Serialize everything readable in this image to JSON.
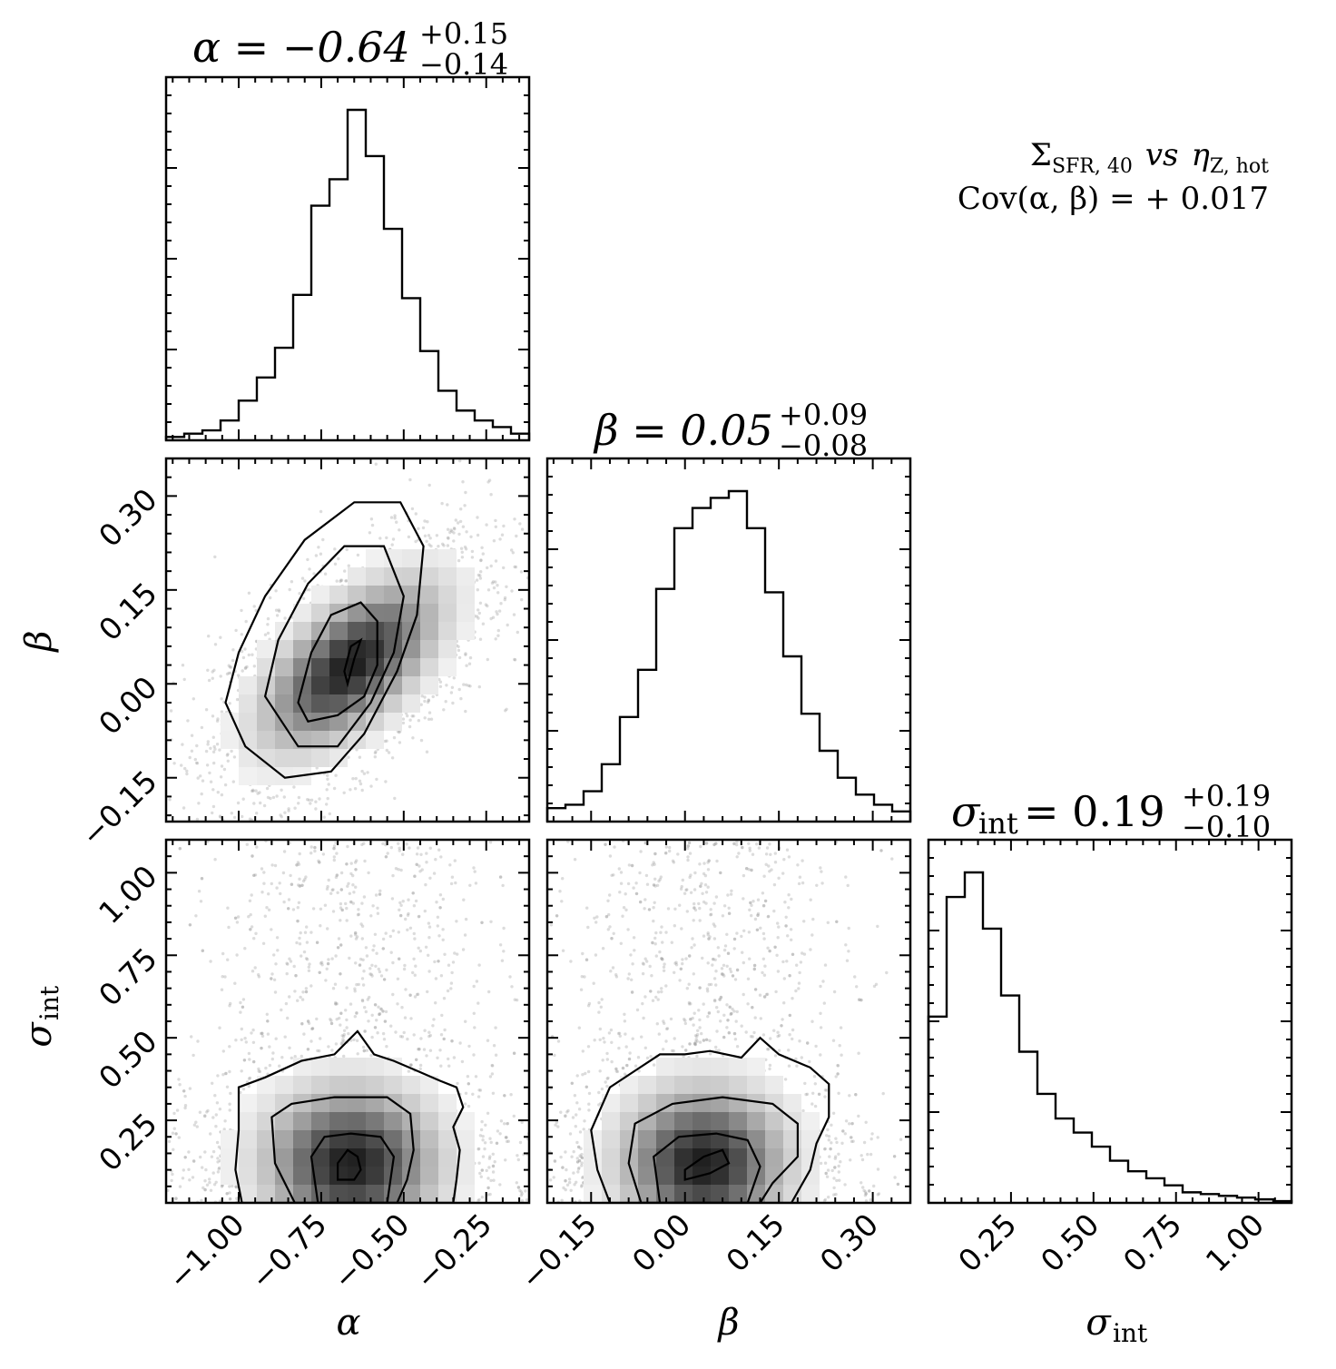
{
  "chart_data": {
    "type": "corner",
    "annotation": {
      "line1_main": "Σ",
      "line1_sub": "SFR, 40",
      "line1_vs": "vs",
      "line1_eta": "η",
      "line1_eta_sub": "Z, hot",
      "line2": "Cov(α, β) = + 0.017"
    },
    "parameters": [
      {
        "key": "alpha",
        "label": "α",
        "title": "α = −0.64",
        "title_sup": "+0.15",
        "title_sub": "−0.14",
        "median": -0.64,
        "range": [
          -1.22,
          -0.12
        ],
        "ticks": [
          -1.0,
          -0.75,
          -0.5,
          -0.25
        ],
        "tick_labels": [
          "−1.00",
          "−0.75",
          "−0.50",
          "−0.25"
        ]
      },
      {
        "key": "beta",
        "label": "β",
        "title": "β = 0.05",
        "title_sup": "+0.09",
        "title_sub": "−0.08",
        "median": 0.05,
        "range": [
          -0.22,
          0.36
        ],
        "ticks": [
          -0.15,
          0.0,
          0.15,
          0.3
        ],
        "tick_labels": [
          "−0.15",
          "0.00",
          "0.15",
          "0.30"
        ]
      },
      {
        "key": "sigma",
        "label": "σ",
        "label_sub": "int",
        "title": "σ",
        "title_after": " = 0.19",
        "title_sub_label": "int",
        "title_sup": "+0.19",
        "title_sub": "−0.10",
        "median": 0.19,
        "range": [
          0.0,
          1.1
        ],
        "ticks": [
          0.25,
          0.5,
          0.75,
          1.0
        ],
        "tick_labels": [
          "0.25",
          "0.50",
          "0.75",
          "1.00"
        ]
      }
    ],
    "histograms": {
      "alpha": {
        "edges": [
          -1.22,
          -1.165,
          -1.11,
          -1.055,
          -1.0,
          -0.945,
          -0.89,
          -0.835,
          -0.78,
          -0.725,
          -0.67,
          -0.615,
          -0.56,
          -0.505,
          -0.45,
          -0.395,
          -0.34,
          -0.285,
          -0.23,
          -0.175,
          -0.12
        ],
        "counts": [
          0.01,
          0.02,
          0.03,
          0.06,
          0.12,
          0.19,
          0.28,
          0.44,
          0.71,
          0.79,
          1.0,
          0.86,
          0.64,
          0.43,
          0.27,
          0.15,
          0.09,
          0.06,
          0.04,
          0.02
        ]
      },
      "beta": {
        "edges": [
          -0.22,
          -0.191,
          -0.162,
          -0.133,
          -0.104,
          -0.075,
          -0.046,
          -0.017,
          0.012,
          0.041,
          0.07,
          0.099,
          0.128,
          0.157,
          0.186,
          0.215,
          0.244,
          0.273,
          0.302,
          0.331,
          0.36
        ],
        "counts": [
          0.04,
          0.05,
          0.09,
          0.17,
          0.31,
          0.45,
          0.69,
          0.87,
          0.93,
          0.96,
          0.98,
          0.87,
          0.68,
          0.49,
          0.32,
          0.21,
          0.13,
          0.08,
          0.05,
          0.03
        ]
      },
      "sigma": {
        "edges": [
          0.0,
          0.055,
          0.11,
          0.165,
          0.22,
          0.275,
          0.33,
          0.385,
          0.44,
          0.495,
          0.55,
          0.605,
          0.66,
          0.715,
          0.77,
          0.825,
          0.88,
          0.935,
          0.99,
          1.045,
          1.1
        ],
        "counts": [
          0.53,
          0.87,
          0.94,
          0.78,
          0.59,
          0.43,
          0.31,
          0.24,
          0.2,
          0.16,
          0.12,
          0.09,
          0.07,
          0.05,
          0.03,
          0.025,
          0.02,
          0.015,
          0.01,
          0.005
        ]
      }
    },
    "joint": {
      "alpha_beta": {
        "correlation": 0.6,
        "center": [
          -0.66,
          0.03
        ],
        "spread": [
          0.16,
          0.08
        ],
        "contours": [
          [
            [
              -0.82,
              -0.03
            ],
            [
              -0.78,
              0.05
            ],
            [
              -0.72,
              0.11
            ],
            [
              -0.63,
              0.13
            ],
            [
              -0.58,
              0.1
            ],
            [
              -0.58,
              0.03
            ],
            [
              -0.62,
              -0.02
            ],
            [
              -0.7,
              -0.05
            ],
            [
              -0.79,
              -0.06
            ]
          ],
          [
            [
              -0.92,
              -0.02
            ],
            [
              -0.88,
              0.07
            ],
            [
              -0.79,
              0.16
            ],
            [
              -0.68,
              0.22
            ],
            [
              -0.56,
              0.22
            ],
            [
              -0.5,
              0.14
            ],
            [
              -0.53,
              0.05
            ],
            [
              -0.6,
              -0.03
            ],
            [
              -0.7,
              -0.1
            ],
            [
              -0.82,
              -0.1
            ]
          ],
          [
            [
              -1.04,
              -0.03
            ],
            [
              -1.0,
              0.05
            ],
            [
              -0.92,
              0.14
            ],
            [
              -0.8,
              0.23
            ],
            [
              -0.65,
              0.29
            ],
            [
              -0.51,
              0.29
            ],
            [
              -0.44,
              0.22
            ],
            [
              -0.46,
              0.11
            ],
            [
              -0.52,
              0.02
            ],
            [
              -0.62,
              -0.08
            ],
            [
              -0.72,
              -0.14
            ],
            [
              -0.86,
              -0.15
            ],
            [
              -0.98,
              -0.1
            ]
          ],
          [
            [
              -0.68,
              0.02
            ],
            [
              -0.66,
              0.06
            ],
            [
              -0.63,
              0.07
            ],
            [
              -0.65,
              0.04
            ],
            [
              -0.67,
              0.0
            ]
          ]
        ]
      },
      "alpha_sigma": {
        "center": [
          -0.66,
          0.12
        ],
        "spread": [
          0.16,
          0.14
        ],
        "contours": [
          [
            [
              -0.7,
              0.07
            ],
            [
              -0.7,
              0.12
            ],
            [
              -0.67,
              0.16
            ],
            [
              -0.64,
              0.14
            ],
            [
              -0.63,
              0.1
            ],
            [
              -0.65,
              0.07
            ]
          ],
          [
            [
              -0.76,
              0.0
            ],
            [
              -0.78,
              0.14
            ],
            [
              -0.74,
              0.2
            ],
            [
              -0.66,
              0.21
            ],
            [
              -0.57,
              0.2
            ],
            [
              -0.53,
              0.14
            ],
            [
              -0.55,
              0.0
            ]
          ],
          [
            [
              -0.83,
              0.0
            ],
            [
              -0.89,
              0.12
            ],
            [
              -0.9,
              0.26
            ],
            [
              -0.84,
              0.3
            ],
            [
              -0.71,
              0.32
            ],
            [
              -0.55,
              0.32
            ],
            [
              -0.48,
              0.27
            ],
            [
              -0.47,
              0.16
            ],
            [
              -0.49,
              0.07
            ],
            [
              -0.52,
              0.0
            ]
          ],
          [
            [
              -0.99,
              0.0
            ],
            [
              -1.01,
              0.1
            ],
            [
              -1.0,
              0.22
            ],
            [
              -1.0,
              0.35
            ],
            [
              -0.92,
              0.38
            ],
            [
              -0.81,
              0.43
            ],
            [
              -0.71,
              0.45
            ],
            [
              -0.64,
              0.52
            ],
            [
              -0.59,
              0.45
            ],
            [
              -0.53,
              0.43
            ],
            [
              -0.46,
              0.4
            ],
            [
              -0.39,
              0.37
            ],
            [
              -0.34,
              0.35
            ],
            [
              -0.32,
              0.29
            ],
            [
              -0.35,
              0.23
            ],
            [
              -0.33,
              0.16
            ],
            [
              -0.34,
              0.07
            ],
            [
              -0.35,
              0.0
            ]
          ]
        ]
      },
      "beta_sigma": {
        "center": [
          0.03,
          0.12
        ],
        "spread": [
          0.08,
          0.14
        ],
        "contours": [
          [
            [
              0.0,
              0.07
            ],
            [
              0.0,
              0.1
            ],
            [
              0.03,
              0.14
            ],
            [
              0.06,
              0.16
            ],
            [
              0.07,
              0.12
            ],
            [
              0.04,
              0.09
            ]
          ],
          [
            [
              -0.04,
              0.0
            ],
            [
              -0.05,
              0.14
            ],
            [
              -0.01,
              0.2
            ],
            [
              0.05,
              0.21
            ],
            [
              0.1,
              0.19
            ],
            [
              0.12,
              0.11
            ],
            [
              0.1,
              0.0
            ]
          ],
          [
            [
              -0.07,
              0.0
            ],
            [
              -0.09,
              0.12
            ],
            [
              -0.08,
              0.24
            ],
            [
              -0.02,
              0.3
            ],
            [
              0.06,
              0.32
            ],
            [
              0.14,
              0.3
            ],
            [
              0.18,
              0.24
            ],
            [
              0.18,
              0.14
            ],
            [
              0.14,
              0.06
            ],
            [
              0.12,
              0.0
            ]
          ],
          [
            [
              -0.12,
              0.0
            ],
            [
              -0.14,
              0.1
            ],
            [
              -0.15,
              0.22
            ],
            [
              -0.12,
              0.35
            ],
            [
              -0.08,
              0.4
            ],
            [
              -0.04,
              0.45
            ],
            [
              0.0,
              0.45
            ],
            [
              0.04,
              0.46
            ],
            [
              0.09,
              0.44
            ],
            [
              0.12,
              0.5
            ],
            [
              0.15,
              0.45
            ],
            [
              0.2,
              0.41
            ],
            [
              0.23,
              0.36
            ],
            [
              0.23,
              0.26
            ],
            [
              0.21,
              0.18
            ],
            [
              0.2,
              0.1
            ],
            [
              0.17,
              0.0
            ]
          ]
        ]
      }
    },
    "grid": false
  }
}
